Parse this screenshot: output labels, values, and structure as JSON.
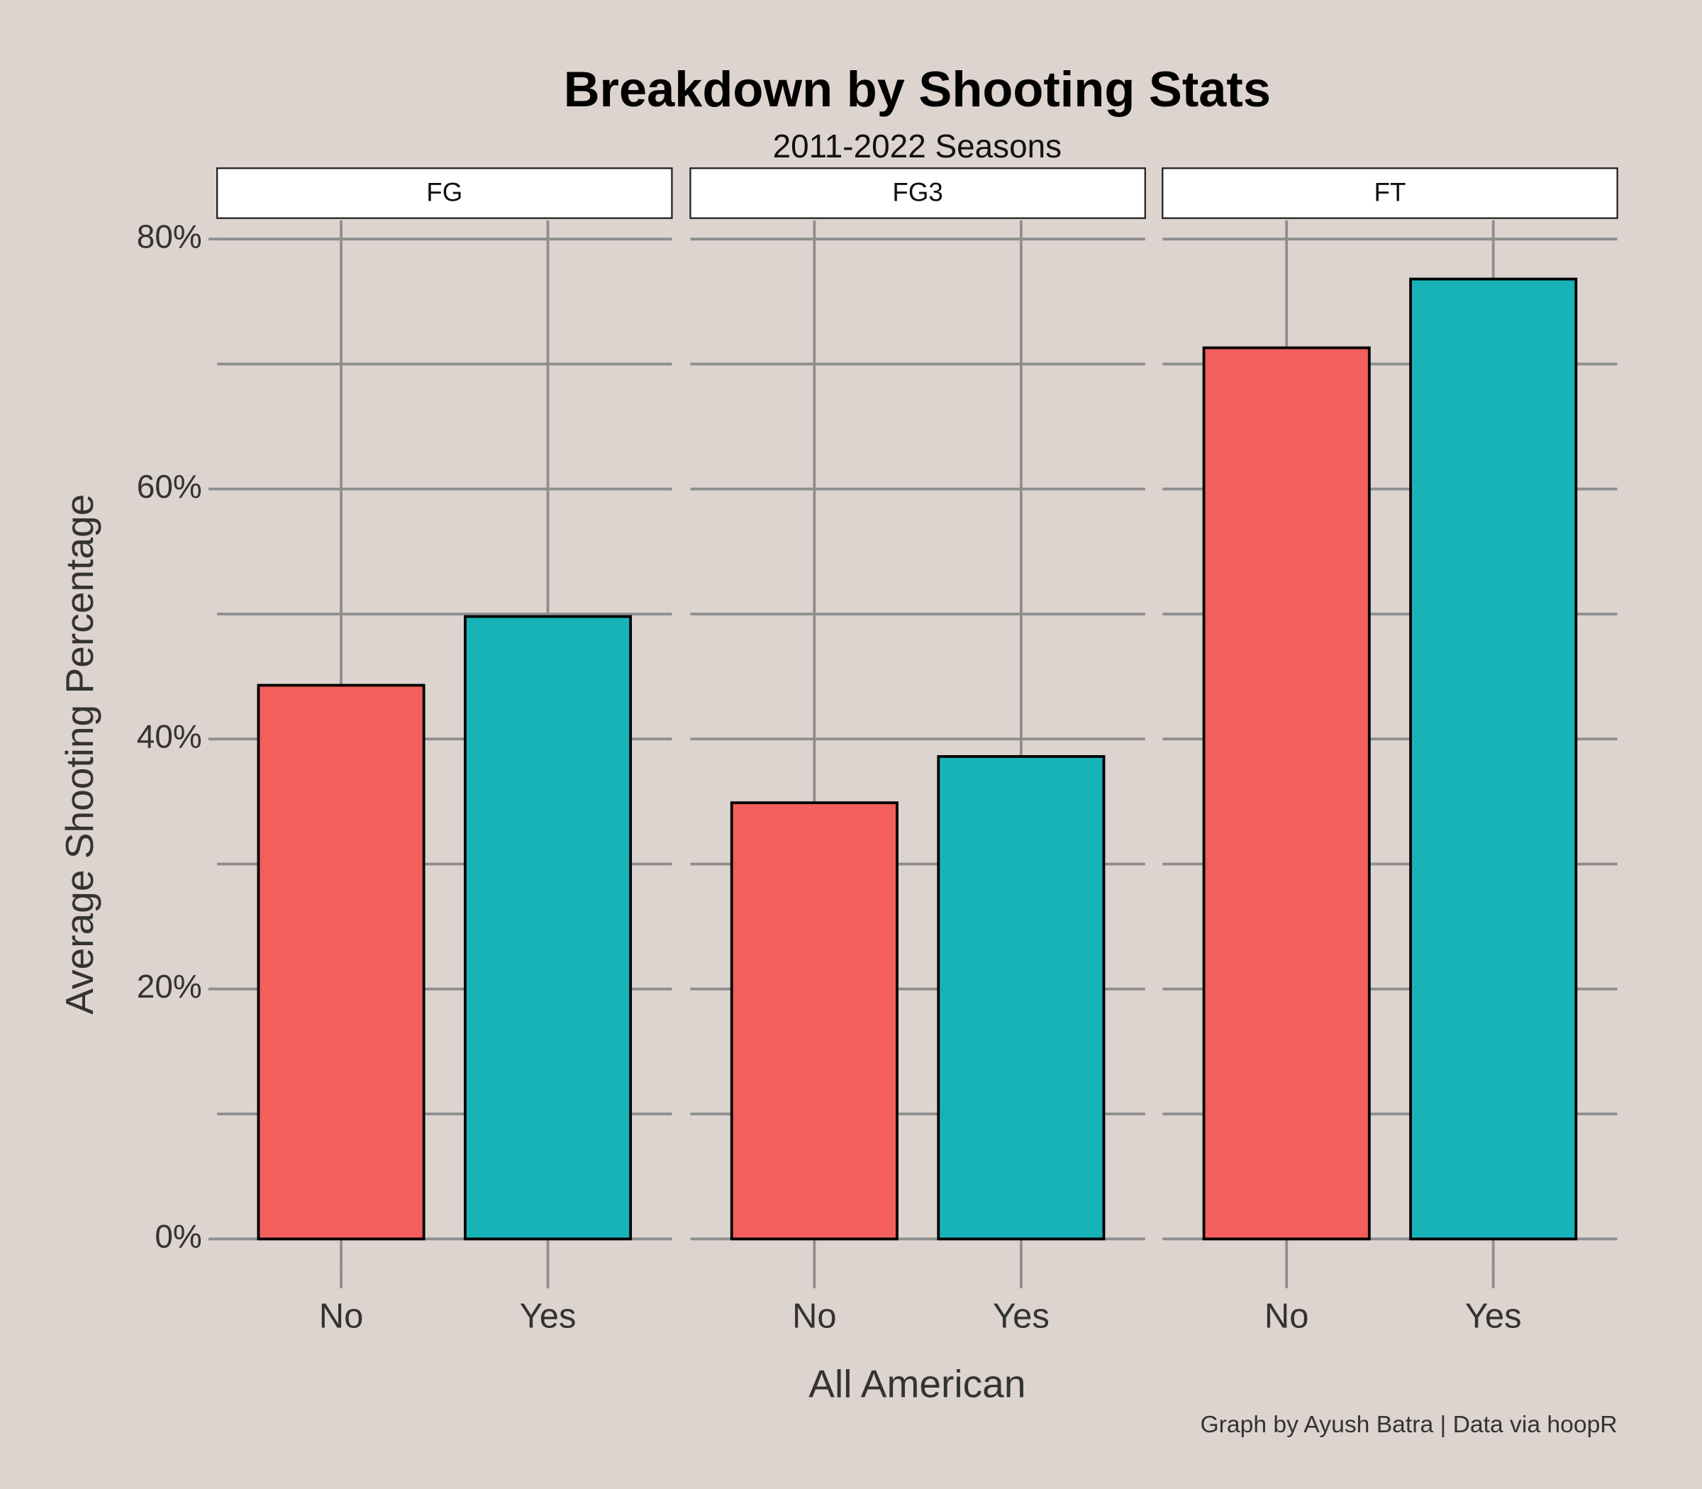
{
  "chart_data": {
    "type": "bar",
    "title": "Breakdown by Shooting Stats",
    "subtitle": "2011-2022 Seasons",
    "x_label": "All American",
    "y_label": "Average Shooting Percentage",
    "caption": "Graph by Ayush Batra | Data via hoopR",
    "categories": [
      "No",
      "Yes"
    ],
    "colors": [
      "#f25f5c",
      "#17b3b7"
    ],
    "facets": [
      {
        "label": "FG",
        "values": [
          44.3,
          49.8
        ]
      },
      {
        "label": "FG3",
        "values": [
          34.9,
          38.6
        ]
      },
      {
        "label": "FT",
        "values": [
          71.3,
          76.8
        ]
      }
    ],
    "ylim": [
      -2.9,
      81.5
    ],
    "yticks": [
      {
        "value": 0,
        "label": "0%"
      },
      {
        "value": 20,
        "label": "20%"
      },
      {
        "value": 40,
        "label": "40%"
      },
      {
        "value": 60,
        "label": "60%"
      },
      {
        "value": 80,
        "label": "80%"
      }
    ],
    "minor_yticks": [
      10,
      30,
      50,
      70
    ],
    "grid": true
  }
}
